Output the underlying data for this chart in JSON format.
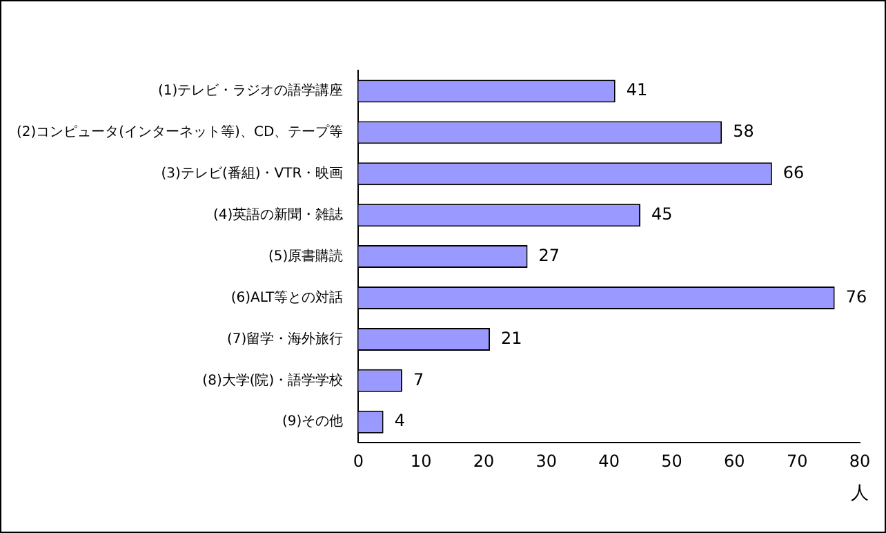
{
  "chart_data": {
    "type": "bar",
    "orientation": "horizontal",
    "xlabel": "人",
    "categories": [
      "(1)テレビ・ラジオの語学講座",
      "(2)コンピュータ(インターネット等)、CD、テープ等",
      "(3)テレビ(番組)・VTR・映画",
      "(4)英語の新聞・雑誌",
      "(5)原書購読",
      "(6)ALT等との対話",
      "(7)留学・海外旅行",
      "(8)大学(院)・語学学校",
      "(9)その他"
    ],
    "values": [
      41,
      58,
      66,
      45,
      27,
      76,
      21,
      7,
      4
    ],
    "color": "#9999ff",
    "xlim": [
      0,
      80
    ],
    "xticks": [
      0,
      10,
      20,
      30,
      40,
      50,
      60,
      70,
      80
    ],
    "data_labels": true,
    "grid": false,
    "legend": false
  }
}
